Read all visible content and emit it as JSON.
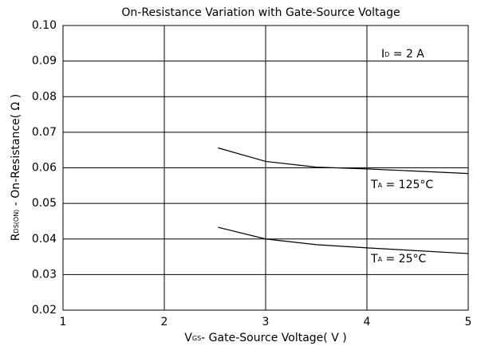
{
  "chart_data": {
    "type": "line",
    "title": "On-Resistance Variation with Gate-Source Voltage",
    "x_label": {
      "main": "V",
      "sub": "GS",
      "rest": "- Gate-Source Voltage( V )"
    },
    "y_label": {
      "main": "R",
      "sub": "DS(ON)",
      "rest": " - On-Resistance( Ω )"
    },
    "annotation": {
      "main": "I",
      "sub": "D",
      "rest": " = 2 A"
    },
    "x": [
      2.53,
      3,
      3.5,
      4,
      5
    ],
    "series": [
      {
        "label": {
          "main": "T",
          "sub": "A",
          "rest": " = 125°C"
        },
        "color": "#000000",
        "values": [
          0.0656,
          0.0618,
          0.0602,
          0.0597,
          0.0584
        ]
      },
      {
        "label": {
          "main": "T",
          "sub": "A",
          "rest": " = 25°C"
        },
        "color": "#000000",
        "values": [
          0.0433,
          0.04,
          0.0384,
          0.0375,
          0.0359
        ]
      }
    ],
    "xlim": [
      1,
      5
    ],
    "xticks": [
      1,
      2,
      3,
      4,
      5
    ],
    "ylim": [
      0.02,
      0.1
    ],
    "yticks": [
      {
        "value": 0.02,
        "label": "0.02"
      },
      {
        "value": 0.03,
        "label": "0.03"
      },
      {
        "value": 0.04,
        "label": "0.04"
      },
      {
        "value": 0.05,
        "label": "0.05"
      },
      {
        "value": 0.06,
        "label": "0.06"
      },
      {
        "value": 0.07,
        "label": "0.07"
      },
      {
        "value": 0.08,
        "label": "0.08"
      },
      {
        "value": 0.09,
        "label": "0.09"
      },
      {
        "value": 0.1,
        "label": "0.10"
      }
    ],
    "grid": true
  }
}
